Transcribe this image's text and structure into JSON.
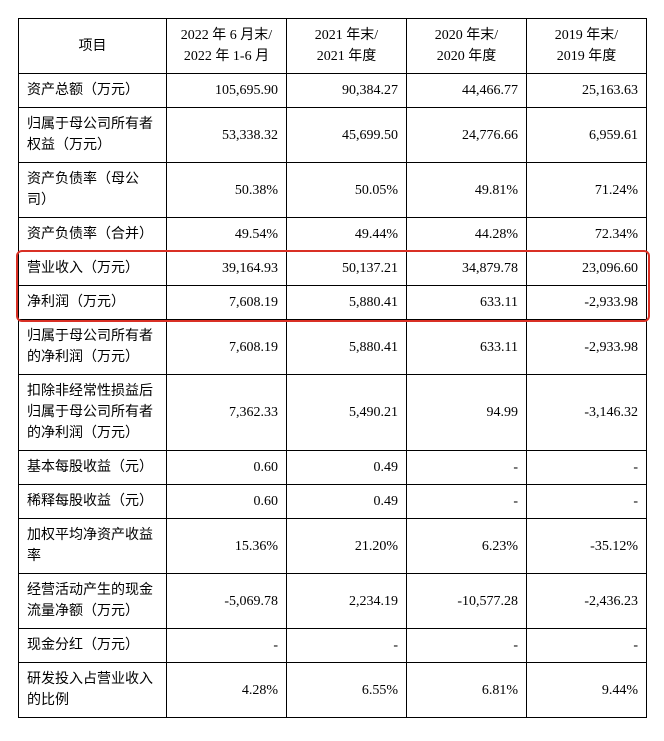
{
  "table": {
    "columns": [
      {
        "line1": "项目",
        "line2": ""
      },
      {
        "line1": "2022 年 6 月末/",
        "line2": "2022 年 1-6 月"
      },
      {
        "line1": "2021 年末/",
        "line2": "2021 年度"
      },
      {
        "line1": "2020 年末/",
        "line2": "2020 年度"
      },
      {
        "line1": "2019 年末/",
        "line2": "2019 年度"
      }
    ],
    "rows": [
      {
        "label": "资产总额（万元）",
        "v": [
          "105,695.90",
          "90,384.27",
          "44,466.77",
          "25,163.63"
        ]
      },
      {
        "label": "归属于母公司所有者权益（万元）",
        "v": [
          "53,338.32",
          "45,699.50",
          "24,776.66",
          "6,959.61"
        ]
      },
      {
        "label": "资产负债率（母公司）",
        "v": [
          "50.38%",
          "50.05%",
          "49.81%",
          "71.24%"
        ]
      },
      {
        "label": "资产负债率（合并）",
        "v": [
          "49.54%",
          "49.44%",
          "44.28%",
          "72.34%"
        ]
      },
      {
        "label": "营业收入（万元）",
        "v": [
          "39,164.93",
          "50,137.21",
          "34,879.78",
          "23,096.60"
        ]
      },
      {
        "label": "净利润（万元）",
        "v": [
          "7,608.19",
          "5,880.41",
          "633.11",
          "-2,933.98"
        ]
      },
      {
        "label": "归属于母公司所有者的净利润（万元）",
        "v": [
          "7,608.19",
          "5,880.41",
          "633.11",
          "-2,933.98"
        ]
      },
      {
        "label": "扣除非经常性损益后归属于母公司所有者的净利润（万元）",
        "v": [
          "7,362.33",
          "5,490.21",
          "94.99",
          "-3,146.32"
        ]
      },
      {
        "label": "基本每股收益（元）",
        "v": [
          "0.60",
          "0.49",
          "-",
          "-"
        ]
      },
      {
        "label": "稀释每股收益（元）",
        "v": [
          "0.60",
          "0.49",
          "-",
          "-"
        ]
      },
      {
        "label": "加权平均净资产收益率",
        "v": [
          "15.36%",
          "21.20%",
          "6.23%",
          "-35.12%"
        ]
      },
      {
        "label": "经营活动产生的现金流量净额（万元）",
        "v": [
          "-5,069.78",
          "2,234.19",
          "-10,577.28",
          "-2,436.23"
        ]
      },
      {
        "label": "现金分红（万元）",
        "v": [
          "-",
          "-",
          "-",
          "-"
        ]
      },
      {
        "label": "研发投入占营业收入的比例",
        "v": [
          "4.28%",
          "6.55%",
          "6.81%",
          "9.44%"
        ]
      }
    ],
    "highlight": {
      "color": "#d93025",
      "row_start_index": 4,
      "row_end_index": 5
    }
  }
}
